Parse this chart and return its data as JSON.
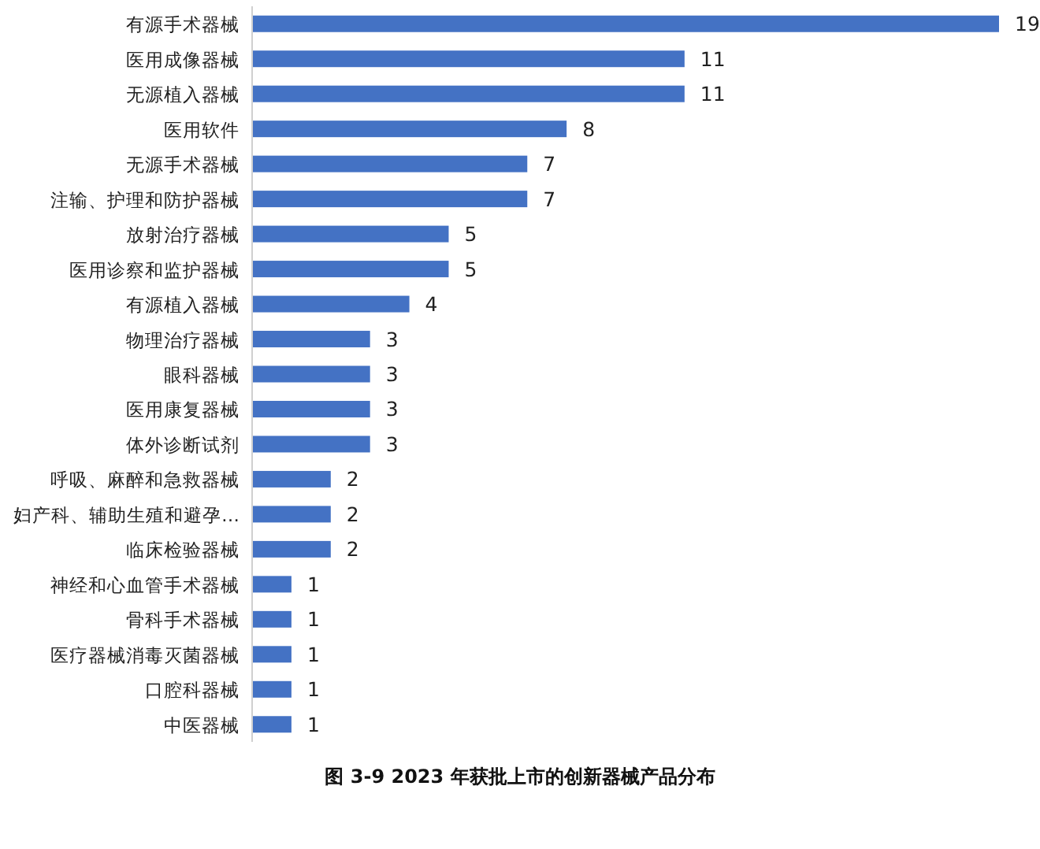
{
  "chart_data": {
    "type": "bar",
    "orientation": "horizontal",
    "data_labels": true,
    "color": "#4472c4",
    "title": "图 3-9 2023 年获批上市的创新器械产品分布",
    "categories": [
      "有源手术器械",
      "医用成像器械",
      "无源植入器械",
      "医用软件",
      "无源手术器械",
      "注输、护理和防护器械",
      "放射治疗器械",
      "医用诊察和监护器械",
      "有源植入器械",
      "物理治疗器械",
      "眼科器械",
      "医用康复器械",
      "体外诊断试剂",
      "呼吸、麻醉和急救器械",
      "妇产科、辅助生殖和避孕…",
      "临床检验器械",
      "神经和心血管手术器械",
      "骨科手术器械",
      "医疗器械消毒灭菌器械",
      "口腔科器械",
      "中医器械"
    ],
    "values": [
      19,
      11,
      11,
      8,
      7,
      7,
      5,
      5,
      4,
      3,
      3,
      3,
      3,
      2,
      2,
      2,
      1,
      1,
      1,
      1,
      1
    ]
  }
}
